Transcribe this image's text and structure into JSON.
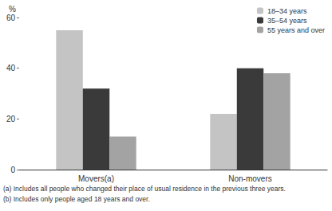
{
  "chart_data": {
    "type": "bar",
    "ylabel": "%",
    "categories": [
      "Movers(a)",
      "Non-movers"
    ],
    "series": [
      {
        "name": "18–34 years",
        "color": "#c4c4c4",
        "values": [
          55,
          22
        ]
      },
      {
        "name": "35–54 years",
        "color": "#3a3a3a",
        "values": [
          32,
          40
        ]
      },
      {
        "name": "55 years and over",
        "color": "#a3a3a3",
        "values": [
          13,
          38
        ]
      }
    ],
    "ylim": [
      0,
      60
    ],
    "yticks": [
      0,
      20,
      40,
      60
    ],
    "legend": "top-right",
    "annotations": [
      "(a) Includes all people who changed their place of usual residence in the previous three years.",
      "(b) Includes only people aged 18 years and over."
    ]
  }
}
